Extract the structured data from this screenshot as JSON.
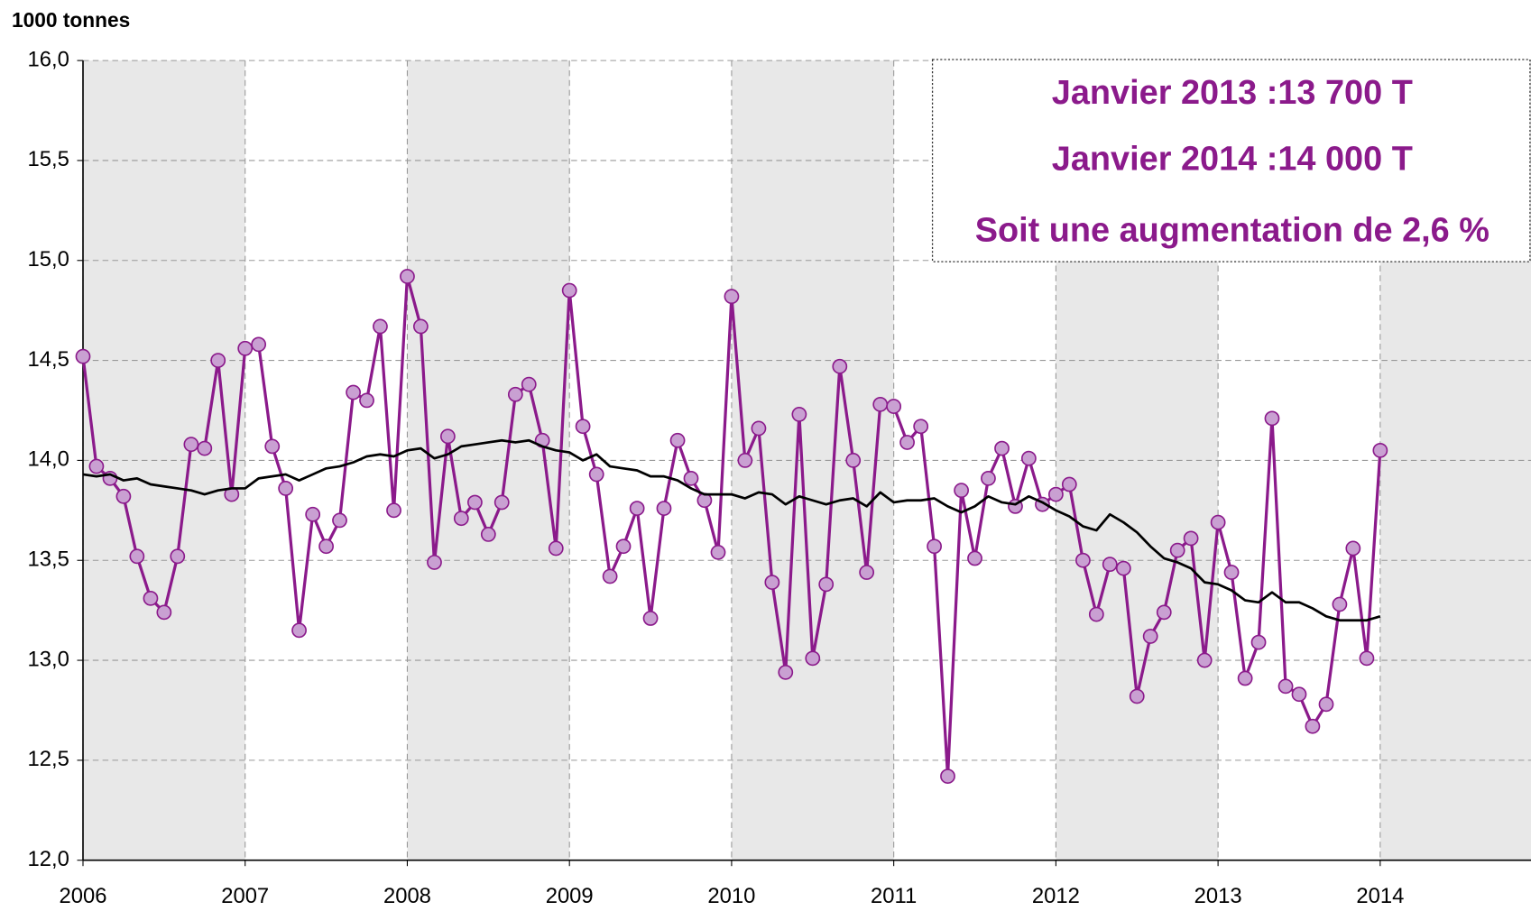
{
  "chart_data": {
    "type": "line",
    "y_label": "1000 tonnes",
    "annotations": [
      "Janvier 2013 :13 700 T",
      "Janvier 2014 :14 000 T",
      "Soit une augmentation de 2,6 %"
    ],
    "annotation_color": "#8b1a8b",
    "x": [
      2006,
      2006.083,
      2006.167,
      2006.25,
      2006.333,
      2006.417,
      2006.5,
      2006.583,
      2006.667,
      2006.75,
      2006.833,
      2006.917,
      2007,
      2007.083,
      2007.167,
      2007.25,
      2007.333,
      2007.417,
      2007.5,
      2007.583,
      2007.667,
      2007.75,
      2007.833,
      2007.917,
      2008,
      2008.083,
      2008.167,
      2008.25,
      2008.333,
      2008.417,
      2008.5,
      2008.583,
      2008.667,
      2008.75,
      2008.833,
      2008.917,
      2009,
      2009.083,
      2009.167,
      2009.25,
      2009.333,
      2009.417,
      2009.5,
      2009.583,
      2009.667,
      2009.75,
      2009.833,
      2009.917,
      2010,
      2010.083,
      2010.167,
      2010.25,
      2010.333,
      2010.417,
      2010.5,
      2010.583,
      2010.667,
      2010.75,
      2010.833,
      2010.917,
      2011,
      2011.083,
      2011.167,
      2011.25,
      2011.333,
      2011.417,
      2011.5,
      2011.583,
      2011.667,
      2011.75,
      2011.833,
      2011.917,
      2012,
      2012.083,
      2012.167,
      2012.25,
      2012.333,
      2012.417,
      2012.5,
      2012.583,
      2012.667,
      2012.75,
      2012.833,
      2012.917,
      2013,
      2013.083,
      2013.167,
      2013.25,
      2013.333,
      2013.417,
      2013.5,
      2013.583,
      2013.667,
      2013.75,
      2013.833,
      2013.917,
      2014
    ],
    "series": [
      {
        "color": "#8b1a8b",
        "marker_fill": "#c9a0d2",
        "markers": true,
        "values": [
          14.52,
          13.97,
          13.91,
          13.82,
          13.52,
          13.31,
          13.24,
          13.52,
          14.08,
          14.06,
          14.5,
          13.83,
          14.56,
          14.58,
          14.07,
          13.86,
          13.15,
          13.73,
          13.57,
          13.7,
          14.34,
          14.3,
          14.67,
          13.75,
          14.92,
          14.67,
          13.49,
          14.12,
          13.71,
          13.79,
          13.63,
          13.79,
          14.33,
          14.38,
          14.1,
          13.56,
          14.85,
          14.17,
          13.93,
          13.42,
          13.57,
          13.76,
          13.21,
          13.76,
          14.1,
          13.91,
          13.8,
          13.54,
          14.82,
          14,
          14.16,
          13.39,
          12.94,
          14.23,
          13.01,
          13.38,
          14.47,
          14,
          13.44,
          14.28,
          14.27,
          14.09,
          14.17,
          13.57,
          12.42,
          13.85,
          13.51,
          13.91,
          14.06,
          13.77,
          14.01,
          13.78,
          13.83,
          13.88,
          13.5,
          13.23,
          13.48,
          13.46,
          12.82,
          13.12,
          13.24,
          13.55,
          13.61,
          13,
          13.69,
          13.44,
          12.91,
          13.09,
          14.21,
          12.87,
          12.83,
          12.67,
          12.78,
          13.28,
          13.56,
          13.01,
          14.05
        ]
      },
      {
        "color": "#000000",
        "markers": false,
        "values": [
          13.93,
          13.92,
          13.93,
          13.9,
          13.91,
          13.88,
          13.87,
          13.86,
          13.85,
          13.83,
          13.85,
          13.86,
          13.86,
          13.91,
          13.92,
          13.93,
          13.9,
          13.93,
          13.96,
          13.97,
          13.99,
          14.02,
          14.03,
          14.02,
          14.05,
          14.06,
          14.01,
          14.03,
          14.07,
          14.08,
          14.09,
          14.1,
          14.09,
          14.1,
          14.07,
          14.05,
          14.04,
          14,
          14.03,
          13.97,
          13.96,
          13.95,
          13.92,
          13.92,
          13.9,
          13.86,
          13.83,
          13.83,
          13.83,
          13.81,
          13.84,
          13.83,
          13.78,
          13.82,
          13.8,
          13.78,
          13.8,
          13.81,
          13.77,
          13.84,
          13.79,
          13.8,
          13.8,
          13.81,
          13.77,
          13.74,
          13.77,
          13.82,
          13.79,
          13.78,
          13.82,
          13.79,
          13.75,
          13.72,
          13.67,
          13.65,
          13.73,
          13.69,
          13.64,
          13.57,
          13.51,
          13.49,
          13.46,
          13.39,
          13.38,
          13.35,
          13.3,
          13.29,
          13.34,
          13.29,
          13.29,
          13.26,
          13.22,
          13.2,
          13.2,
          13.2,
          13.22
        ]
      }
    ],
    "xlim": [
      2006,
      2014.93
    ],
    "xticks": [
      2006,
      2007,
      2008,
      2009,
      2010,
      2011,
      2012,
      2013,
      2014
    ],
    "ylim": [
      12,
      16
    ],
    "yticks": [
      {
        "value": 12,
        "label": "12,0"
      },
      {
        "value": 12.5,
        "label": "12,5"
      },
      {
        "value": 13,
        "label": "13,0"
      },
      {
        "value": 13.5,
        "label": "13,5"
      },
      {
        "value": 14,
        "label": "14,0"
      },
      {
        "value": 14.5,
        "label": "14,5"
      },
      {
        "value": 15,
        "label": "15,0"
      },
      {
        "value": 15.5,
        "label": "15,5"
      },
      {
        "value": 16,
        "label": "16,0"
      }
    ],
    "grid": true,
    "alternate_year_shading": "#e8e8e8"
  }
}
